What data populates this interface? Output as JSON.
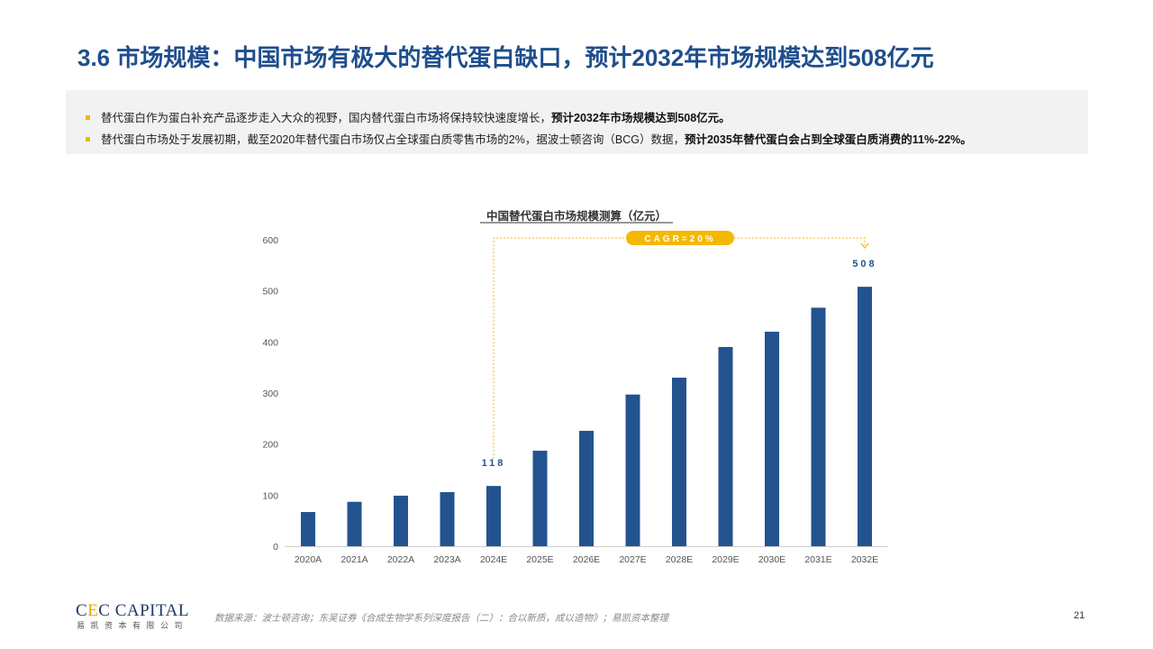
{
  "header": {
    "title": "3.6 市场规模：中国市场有极大的替代蛋白缺口，预计2032年市场规模达到508亿元"
  },
  "summary": {
    "bullets": [
      {
        "text": "替代蛋白作为蛋白补充产品逐步走入大众的视野，国内替代蛋白市场将保持较快速度增长，",
        "bold": "预计2032年市场规模达到508亿元。"
      },
      {
        "text": "替代蛋白市场处于发展初期，截至2020年替代蛋白市场仅占全球蛋白质零售市场的2%，据波士顿咨询（BCG）数据，",
        "bold": "预计2035年替代蛋白会占到全球蛋白质消费的11%-22%。"
      }
    ]
  },
  "chart_data": {
    "type": "bar",
    "title": "中国替代蛋白市场规模测算（亿元）",
    "categories": [
      "2020A",
      "2021A",
      "2022A",
      "2023A",
      "2024E",
      "2025E",
      "2026E",
      "2027E",
      "2028E",
      "2029E",
      "2030E",
      "2031E",
      "2032E"
    ],
    "values": [
      67,
      87,
      99,
      106,
      118,
      187,
      226,
      297,
      330,
      390,
      420,
      467,
      508
    ],
    "ylim": [
      0,
      600
    ],
    "yticks": [
      "0",
      "100",
      "200",
      "300",
      "400",
      "500",
      "600"
    ],
    "bar_color": "#23538f",
    "annotations": {
      "cagr_label": "CAGR=20%",
      "cagr_color": "#f5b800",
      "start_label": "118",
      "end_label": "508",
      "label_color": "#23538f"
    }
  },
  "footer": {
    "logo_prefix": "C",
    "logo_accent": "E",
    "logo_suffix": "C CAPITAL",
    "logo_sub": "易凯资本有限公司",
    "source": "数据来源：波士顿咨询；东吴证券《合成生物学系列深度报告（二）：合以新质，成以造物》；易凯资本整理",
    "page_number": "21"
  }
}
